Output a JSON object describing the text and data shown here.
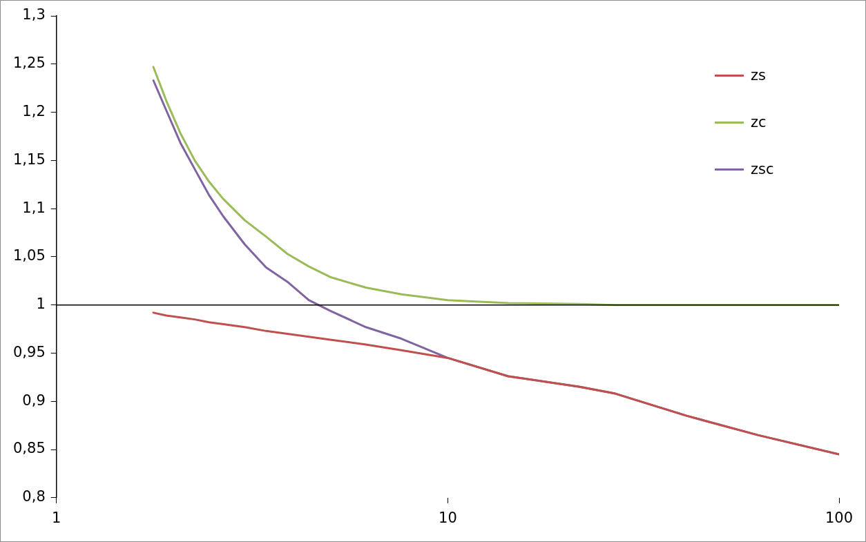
{
  "chart_data": {
    "type": "line",
    "log": "x",
    "x": [
      1.769,
      1.908,
      2.075,
      2.256,
      2.454,
      2.668,
      3.026,
      3.432,
      3.893,
      4.414,
      5.006,
      6.173,
      7.613,
      10,
      14.28,
      21.73,
      26.8,
      40.75,
      62.0,
      100
    ],
    "series": [
      {
        "name": "zs",
        "color": "#c0504d",
        "values": [
          0.992,
          0.989,
          0.987,
          0.985,
          0.982,
          0.98,
          0.977,
          0.973,
          0.97,
          0.967,
          0.964,
          0.959,
          0.953,
          0.945,
          0.926,
          0.915,
          0.908,
          0.885,
          0.865,
          0.845
        ]
      },
      {
        "name": "zc",
        "color": "#9bbb59",
        "values": [
          1.247,
          1.212,
          1.178,
          1.15,
          1.128,
          1.11,
          1.088,
          1.071,
          1.053,
          1.04,
          1.029,
          1.018,
          1.011,
          1.005,
          1.002,
          1.001,
          1.0,
          1.0,
          1.0,
          1.0
        ]
      },
      {
        "name": "zsc",
        "color": "#8064a2",
        "values": [
          1.233,
          1.202,
          1.168,
          1.141,
          1.114,
          1.092,
          1.063,
          1.039,
          1.024,
          1.005,
          0.994,
          0.977,
          0.965,
          0.945,
          0.926,
          0.915,
          0.908,
          0.885,
          0.865,
          0.845
        ]
      }
    ],
    "xlim": [
      1,
      100
    ],
    "xticks": [
      1,
      10,
      100
    ],
    "ylim": [
      0.8,
      1.3
    ],
    "yticks": [
      {
        "value": 0.8,
        "label": "0,8"
      },
      {
        "value": 0.85,
        "label": "0,85"
      },
      {
        "value": 0.9,
        "label": "0,9"
      },
      {
        "value": 0.95,
        "label": "0,95"
      },
      {
        "value": 1,
        "label": "1"
      },
      {
        "value": 1.05,
        "label": "1,05"
      },
      {
        "value": 1.1,
        "label": "1,1"
      },
      {
        "value": 1.15,
        "label": "1,15"
      },
      {
        "value": 1.2,
        "label": "1,2"
      },
      {
        "value": 1.25,
        "label": "1,25"
      },
      {
        "value": 1.3,
        "label": "1,3"
      }
    ],
    "ref_lines": [
      {
        "axis": "y",
        "value": 1,
        "color": "#000000"
      }
    ],
    "grid": false,
    "legend": "top right",
    "marker": "none",
    "line_style": "solid"
  }
}
